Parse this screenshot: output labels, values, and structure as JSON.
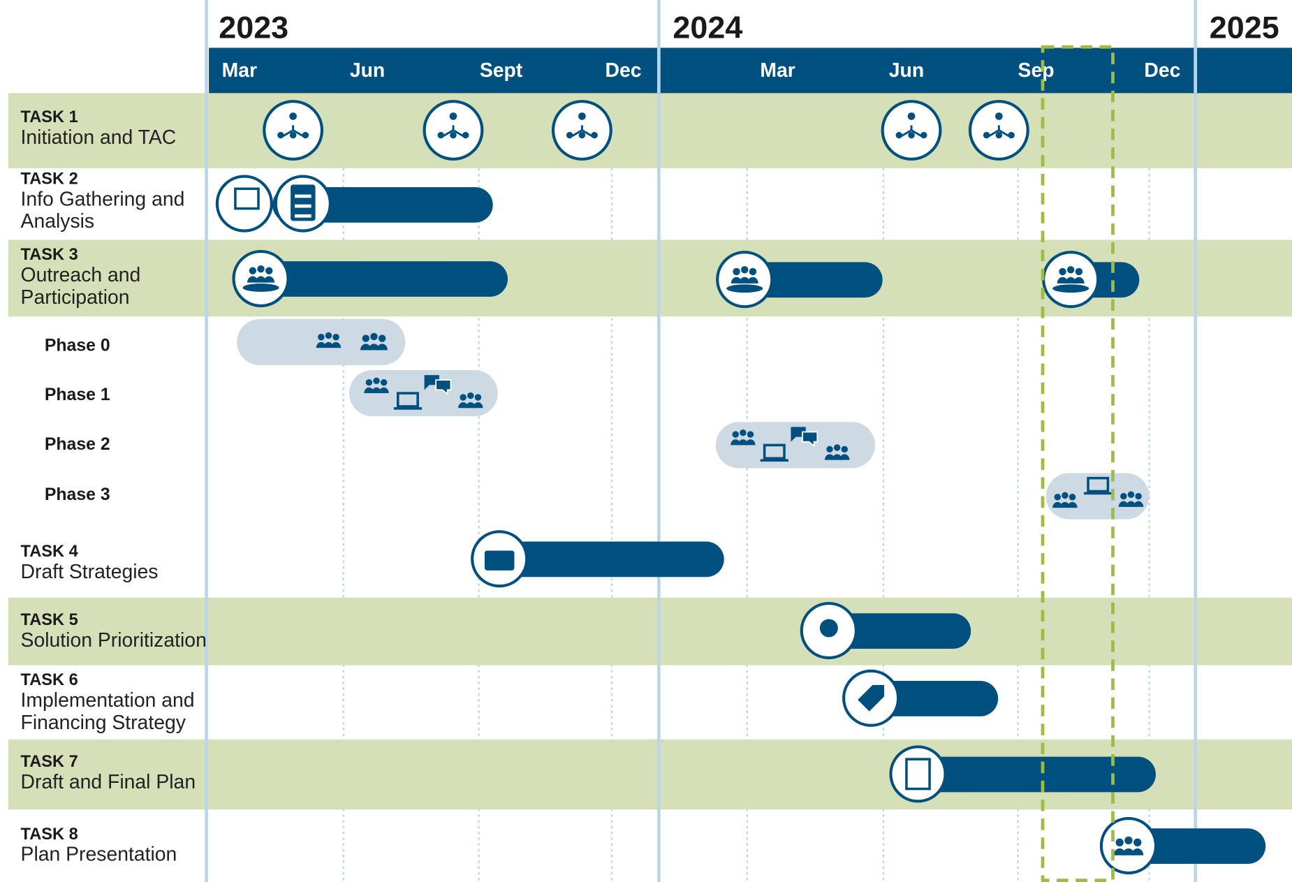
{
  "years": [
    "2023",
    "2024",
    "2025"
  ],
  "months": [
    "Mar",
    "Jun",
    "Sept",
    "Dec",
    "Mar",
    "Jun",
    "Sep",
    "Dec"
  ],
  "tasks": [
    {
      "label": "TASK 1",
      "name": [
        "Initiation and TAC"
      ]
    },
    {
      "label": "TASK 2",
      "name": [
        "Info Gathering and",
        "Analysis"
      ]
    },
    {
      "label": "TASK 3",
      "name": [
        "Outreach and",
        "Participation"
      ]
    },
    {
      "label": "TASK 4",
      "name": [
        "Draft Strategies"
      ]
    },
    {
      "label": "TASK 5",
      "name": [
        "Solution Prioritization"
      ]
    },
    {
      "label": "TASK 6",
      "name": [
        "Implementation and",
        "Financing Strategy"
      ]
    },
    {
      "label": "TASK 7",
      "name": [
        "Draft and Final Plan"
      ]
    },
    {
      "label": "TASK 8",
      "name": [
        "Plan Presentation"
      ]
    }
  ],
  "phases": [
    "Phase 0",
    "Phase 1",
    "Phase 2",
    "Phase 3"
  ]
}
